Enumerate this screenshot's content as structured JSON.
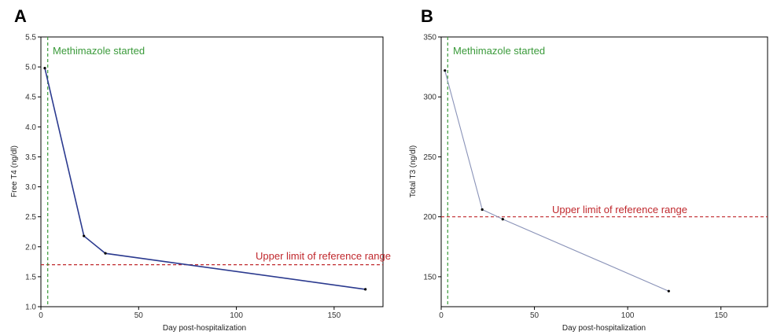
{
  "chart_data": [
    {
      "panel": "A",
      "type": "line",
      "xlabel": "Day post-hospitalization",
      "ylabel": "Free T4 (ng/dl)",
      "xlim": [
        0,
        175
      ],
      "ylim": [
        1.0,
        5.5
      ],
      "xticks": [
        0,
        50,
        100,
        150
      ],
      "yticks": [
        1.0,
        1.5,
        2.0,
        2.5,
        3.0,
        3.5,
        4.0,
        4.5,
        5.0,
        5.5
      ],
      "ytick_labels": [
        "1.0",
        "1.5",
        "2.0",
        "2.5",
        "3.0",
        "3.5",
        "4.0",
        "4.5",
        "5.0",
        "5.5"
      ],
      "series": [
        {
          "name": "Free T4",
          "color": "#2b3a8f",
          "x": [
            2,
            22,
            33,
            166
          ],
          "y": [
            4.98,
            2.18,
            1.89,
            1.29
          ]
        }
      ],
      "vline": {
        "x": 3.5,
        "label": "Methimazole started",
        "color": "#3a9a3a"
      },
      "hline": {
        "y": 1.7,
        "label": "Upper limit of reference range",
        "color": "#c0282d"
      }
    },
    {
      "panel": "B",
      "type": "line",
      "xlabel": "Day post-hospitalization",
      "ylabel": "Total T3 (ng/dl)",
      "xlim": [
        0,
        175
      ],
      "ylim": [
        125,
        350
      ],
      "xticks": [
        0,
        50,
        100,
        150
      ],
      "yticks": [
        150,
        200,
        250,
        300,
        350
      ],
      "ytick_labels": [
        "150",
        "200",
        "250",
        "300",
        "350"
      ],
      "series": [
        {
          "name": "Total T3",
          "color": "#8a93b8",
          "x": [
            2,
            22,
            33,
            122
          ],
          "y": [
            322,
            206,
            198,
            138
          ]
        }
      ],
      "vline": {
        "x": 3.5,
        "label": "Methimazole started",
        "color": "#3a9a3a"
      },
      "hline": {
        "y": 200,
        "label": "Upper limit of reference range",
        "color": "#c0282d"
      }
    }
  ]
}
